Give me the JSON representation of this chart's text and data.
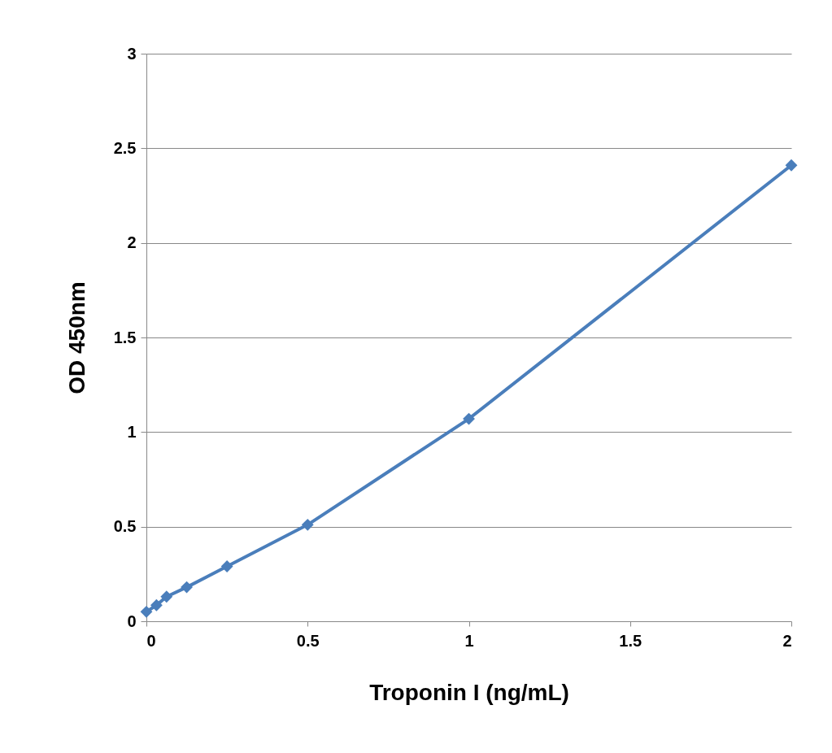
{
  "chart_data": {
    "type": "line",
    "xlabel": "Troponin I (ng/mL)",
    "ylabel": "OD 450nm",
    "x": [
      0,
      0.03125,
      0.0625,
      0.125,
      0.25,
      0.5,
      1,
      2
    ],
    "series": [
      {
        "color": "#4a7ebb",
        "values": [
          0.05,
          0.085,
          0.13,
          0.18,
          0.29,
          0.51,
          1.07,
          2.41
        ]
      }
    ],
    "xlim": [
      0,
      2
    ],
    "xticks": [
      0,
      0.5,
      1,
      1.5,
      2
    ],
    "ylim": [
      0,
      3
    ],
    "yticks": [
      0,
      0.5,
      1,
      1.5,
      2,
      2.5,
      3
    ],
    "grid": "y",
    "marker": "diamond",
    "line_style": "solid"
  }
}
